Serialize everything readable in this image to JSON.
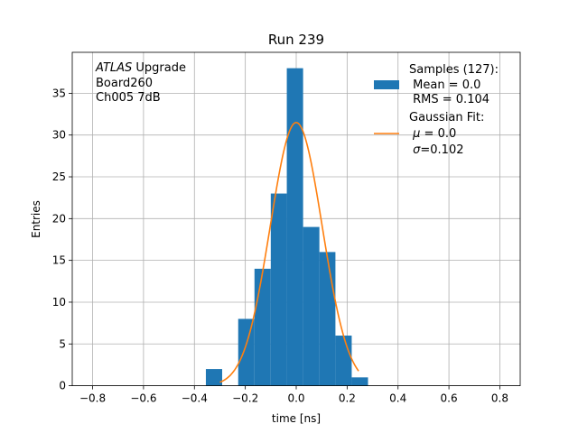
{
  "chart_data": {
    "type": "bar",
    "title": "Run 239",
    "xlabel": "time [ns]",
    "ylabel": "Entries",
    "xlim": [
      -0.88,
      0.88
    ],
    "ylim": [
      0,
      39.9
    ],
    "xticks": [
      -0.8,
      -0.6,
      -0.4,
      -0.2,
      0.0,
      0.2,
      0.4,
      0.6,
      0.8
    ],
    "xtick_labels": [
      "−0.8",
      "−0.6",
      "−0.4",
      "−0.2",
      "0.0",
      "0.2",
      "0.4",
      "0.6",
      "0.8"
    ],
    "yticks": [
      0,
      5,
      10,
      15,
      20,
      25,
      30,
      35
    ],
    "ytick_labels": [
      "0",
      "5",
      "10",
      "15",
      "20",
      "25",
      "30",
      "35"
    ],
    "grid": true,
    "annotation": {
      "lines": [
        {
          "italic": "ATLAS",
          "normal": " Upgrade"
        },
        {
          "italic": "",
          "normal": " Board260"
        },
        {
          "italic": "",
          "normal": " Ch005 7dB"
        }
      ]
    },
    "histogram": {
      "name": "Samples (127):",
      "color": "#1f77b4",
      "bin_edges": [
        -0.355,
        -0.291,
        -0.228,
        -0.164,
        -0.1,
        -0.037,
        0.027,
        0.091,
        0.154,
        0.218,
        0.282
      ],
      "counts": [
        2,
        0,
        8,
        14,
        23,
        38,
        19,
        16,
        6,
        1
      ]
    },
    "fit": {
      "name": "Gaussian Fit:",
      "color": "#ff7f0e",
      "mu": 0.0,
      "sigma": 0.102,
      "amplitude": 31.5,
      "x_range": [
        -0.3,
        0.245
      ]
    },
    "legend": {
      "position": "upper right",
      "hist_lines": [
        "Samples (127):",
        " Mean = 0.0",
        " RMS = 0.104"
      ],
      "fit_lines": [
        {
          "pre": "Gaussian Fit:",
          "sym": "",
          "post": ""
        },
        {
          "pre": " ",
          "sym": "μ",
          "post": " = 0.0"
        },
        {
          "pre": " ",
          "sym": "σ",
          "post": "=0.102"
        }
      ]
    }
  }
}
